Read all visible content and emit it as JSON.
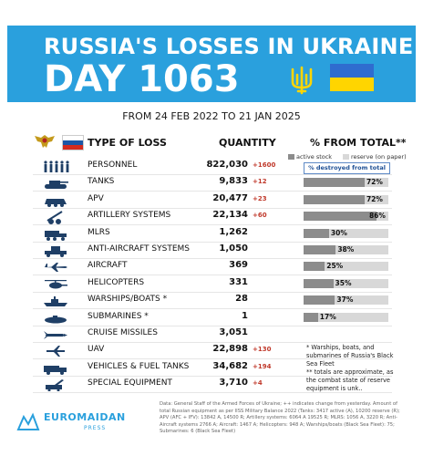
{
  "header": {
    "title_line1": "RUSSIA'S LOSSES IN UKRAINE",
    "title_line2": "DAY 1063",
    "date_range": "FROM 24 FEB 2022 TO 21 JAN 2025"
  },
  "columns": {
    "type": "TYPE OF LOSS",
    "quantity": "QUANTITY",
    "percent": "% FROM TOTAL**"
  },
  "legend": {
    "active": "active stock",
    "reserve": "reserve (on paper)",
    "destroyed": "% destroyed from total"
  },
  "colors": {
    "header_bg": "#2aa0dd",
    "delta": "#c0392b",
    "bar_fill": "#8c8c8c",
    "bar_bg": "#d8d8d8",
    "ua_blue": "#2f6ccf",
    "ua_yellow": "#ffd500"
  },
  "chart_data": {
    "type": "table",
    "rows": [
      {
        "label": "PERSONNEL",
        "icon": "soldiers-icon",
        "qty": "822,030",
        "delta": "+1600",
        "pct": null
      },
      {
        "label": "TANKS",
        "icon": "tank-icon",
        "qty": "9,833",
        "delta": "+12",
        "pct": 72
      },
      {
        "label": "APV",
        "icon": "apv-icon",
        "qty": "20,477",
        "delta": "+23",
        "pct": 72
      },
      {
        "label": "ARTILLERY SYSTEMS",
        "icon": "artillery-icon",
        "qty": "22,134",
        "delta": "+60",
        "pct": 86
      },
      {
        "label": "MLRS",
        "icon": "mlrs-icon",
        "qty": "1,262",
        "delta": "",
        "pct": 30
      },
      {
        "label": "ANTI-AIRCRAFT SYSTEMS",
        "icon": "anti-aircraft-icon",
        "qty": "1,050",
        "delta": "",
        "pct": 38
      },
      {
        "label": "AIRCRAFT",
        "icon": "aircraft-icon",
        "qty": "369",
        "delta": "",
        "pct": 25
      },
      {
        "label": "HELICOPTERS",
        "icon": "helicopter-icon",
        "qty": "331",
        "delta": "",
        "pct": 35
      },
      {
        "label": "WARSHIPS/BOATS *",
        "icon": "warship-icon",
        "qty": "28",
        "delta": "",
        "pct": 37
      },
      {
        "label": "SUBMARINES *",
        "icon": "submarine-icon",
        "qty": "1",
        "delta": "",
        "pct": 17
      },
      {
        "label": "CRUISE MISSILES",
        "icon": "missile-icon",
        "qty": "3,051",
        "delta": "",
        "pct": null
      },
      {
        "label": "UAV",
        "icon": "uav-icon",
        "qty": "22,898",
        "delta": "+130",
        "pct": null
      },
      {
        "label": "VEHICLES & FUEL TANKS",
        "icon": "truck-icon",
        "qty": "34,682",
        "delta": "+194",
        "pct": null
      },
      {
        "label": "SPECIAL EQUIPMENT",
        "icon": "special-equipment-icon",
        "qty": "3,710",
        "delta": "+4",
        "pct": null
      }
    ],
    "pct_labels": {
      "1": "72%",
      "2": "72%",
      "3": "86%",
      "4": "30%",
      "5": "38%",
      "6": "25%",
      "7": "35%",
      "8": "37%",
      "9": "17%"
    }
  },
  "notes": {
    "warships": "* Warships, boats, and submarines of Russia's Black Sea Fleet",
    "totals": "** totals are approximate, as the combat state of reserve equipment is unk.."
  },
  "source": "Data: General Staff of the Armed Forces of Ukraine; ++ indicates change from yesterday. Amount of total Russian equipment as per IISS Military Balance 2022 (Tanks: 3417 active (A), 10200 reserve (R); APV (AFC + IFV): 13842 A, 14500 R; Artillery systems: 6064 A 19525 R; MLRS: 1056 A, 3220 R; Anti-Aircraft systems 2766 A; Aircraft: 1467 A; Helicopters: 948 A; Warships/boats (Black Sea Fleet): 75; Submarines: 6 (Black Sea Fleet)",
  "brand": {
    "name": "EUROMAIDAN",
    "sub": "PRESS"
  }
}
